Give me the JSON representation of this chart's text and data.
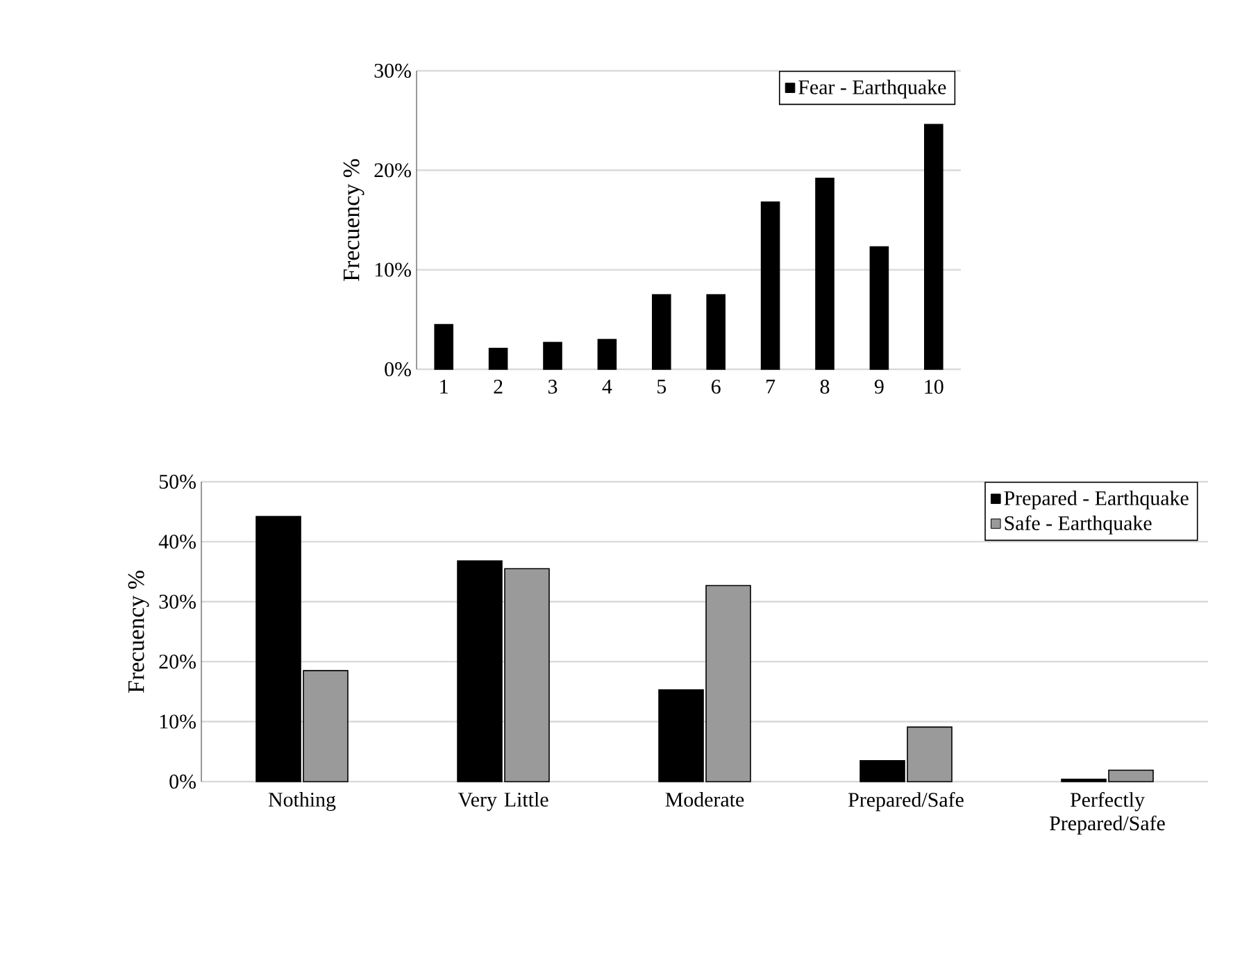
{
  "chart_data": [
    {
      "type": "bar",
      "ylabel": "Frecuency %",
      "categories": [
        "1",
        "2",
        "3",
        "4",
        "5",
        "6",
        "7",
        "8",
        "9",
        "10"
      ],
      "series": [
        {
          "name": "Fear - Earthquake",
          "color": "#000000",
          "values": [
            4.5,
            2.1,
            2.7,
            3.0,
            7.5,
            7.5,
            16.8,
            19.2,
            12.3,
            24.6
          ]
        }
      ],
      "ylim": [
        0,
        30
      ],
      "yticks": [
        {
          "value": 0,
          "label": "0%"
        },
        {
          "value": 10,
          "label": "10%"
        },
        {
          "value": 20,
          "label": "20%"
        },
        {
          "value": 30,
          "label": "30%"
        }
      ],
      "grid": "y",
      "legend": "top right"
    },
    {
      "type": "bar",
      "ylabel": "Frecuency %",
      "categories": [
        "Nothing",
        "Very Little",
        "Moderate",
        "Prepared/Safe",
        "Perfectly Prepared/Safe"
      ],
      "series": [
        {
          "name": "Prepared - Earthquake",
          "color": "#000000",
          "values": [
            44.2,
            36.8,
            15.3,
            3.5,
            0.4
          ]
        },
        {
          "name": "Safe - Earthquake",
          "color": "#9a9a9a",
          "values": [
            18.5,
            35.5,
            32.7,
            9.1,
            1.9
          ]
        }
      ],
      "ylim": [
        0,
        50
      ],
      "yticks": [
        {
          "value": 0,
          "label": "0%"
        },
        {
          "value": 10,
          "label": "10%"
        },
        {
          "value": 20,
          "label": "20%"
        },
        {
          "value": 30,
          "label": "30%"
        },
        {
          "value": 40,
          "label": "40%"
        },
        {
          "value": 50,
          "label": "50%"
        }
      ],
      "grid": "y",
      "legend": "top right"
    }
  ]
}
